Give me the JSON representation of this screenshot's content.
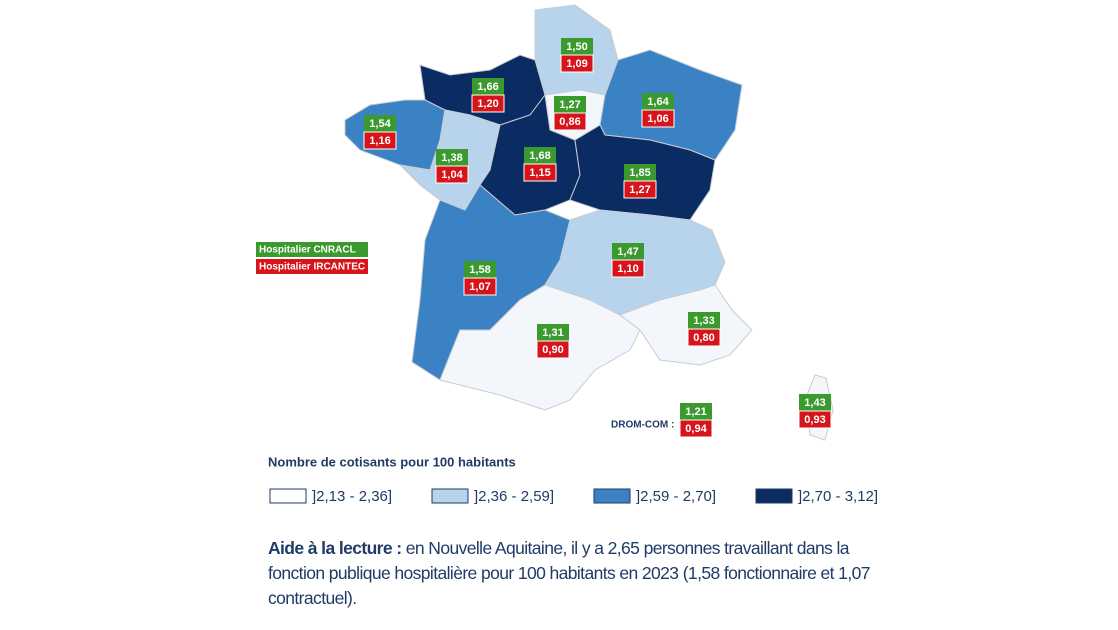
{
  "map": {
    "regions": [
      {
        "cnracl": "1,50",
        "ircantec": "1,09",
        "color": "#b8d4ec"
      },
      {
        "cnracl": "1,66",
        "ircantec": "1,20",
        "color": "#0b2b63"
      },
      {
        "cnracl": "1,27",
        "ircantec": "0,86",
        "color": "#f3f7fc"
      },
      {
        "cnracl": "1,64",
        "ircantec": "1,06",
        "color": "#3b82c4"
      },
      {
        "cnracl": "1,54",
        "ircantec": "1,16",
        "color": "#3b82c4"
      },
      {
        "cnracl": "1,38",
        "ircantec": "1,04",
        "color": "#b8d4ec"
      },
      {
        "cnracl": "1,68",
        "ircantec": "1,15",
        "color": "#0b2b63"
      },
      {
        "cnracl": "1,85",
        "ircantec": "1,27",
        "color": "#0b2b63"
      },
      {
        "cnracl": "1,58",
        "ircantec": "1,07",
        "color": "#3b82c4"
      },
      {
        "cnracl": "1,47",
        "ircantec": "1,10",
        "color": "#b8d4ec"
      },
      {
        "cnracl": "1,31",
        "ircantec": "0,90",
        "color": "#f3f7fc"
      },
      {
        "cnracl": "1,33",
        "ircantec": "0,80",
        "color": "#f3f7fc"
      },
      {
        "cnracl": "1,43",
        "ircantec": "0,93",
        "color": "#f3f7fc"
      }
    ],
    "drom_com": {
      "label": "DROM-COM :",
      "cnracl": "1,21",
      "ircantec": "0,94"
    },
    "series_key": {
      "cnracl": "Hospitalier CNRACL",
      "cnracl_color": "#3a9a2e",
      "ircantec": "Hospitalier IRCANTEC",
      "ircantec_color": "#d7141b"
    },
    "legend": {
      "title": "Nombre de cotisants pour 100 habitants",
      "items": [
        {
          "label": "]2,13 - 2,36]",
          "color": "#ffffff"
        },
        {
          "label": "]2,36 - 2,59]",
          "color": "#b8d4ec"
        },
        {
          "label": "]2,59 - 2,70]",
          "color": "#3b82c4"
        },
        {
          "label": "]2,70 - 3,12]",
          "color": "#0b2b63"
        }
      ]
    },
    "reading_aid": {
      "bold": "Aide à la lecture :",
      "text": "en Nouvelle Aquitaine, il y a 2,65 personnes travaillant dans la fonction publique hospitalière pour 100 habitants en 2023 (1,58 fonctionnaire et 1,07 contractuel)."
    }
  }
}
